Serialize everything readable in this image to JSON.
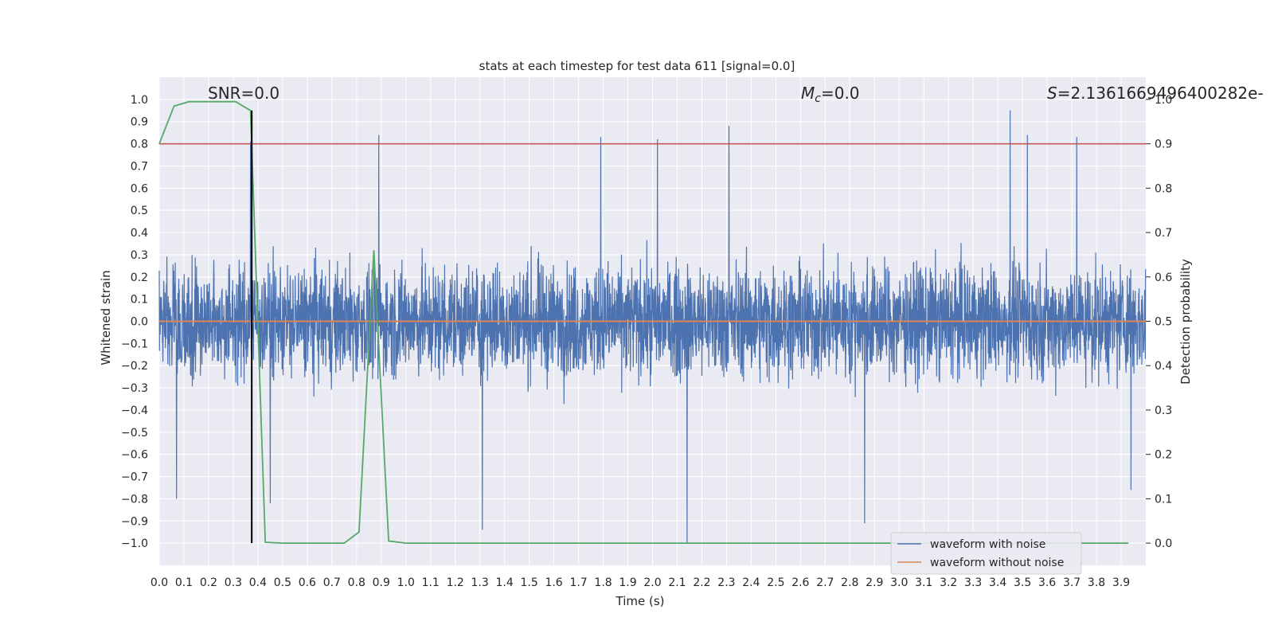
{
  "chart_data": {
    "type": "line",
    "title": "stats at each timestep for test data 611 [signal=0.0]",
    "xlabel": "Time (s)",
    "ylabel": "Whitened strain",
    "ylabel_right": "Detection probability",
    "xlim": [
      0.0,
      4.0
    ],
    "ylim": [
      -1.1,
      1.1
    ],
    "ylim_right": [
      -0.05,
      1.05
    ],
    "x_ticks": [
      "0.0",
      "0.1",
      "0.2",
      "0.3",
      "0.4",
      "0.5",
      "0.6",
      "0.7",
      "0.8",
      "0.9",
      "1.0",
      "1.1",
      "1.2",
      "1.3",
      "1.4",
      "1.5",
      "1.6",
      "1.7",
      "1.8",
      "1.9",
      "2.0",
      "2.1",
      "2.2",
      "2.3",
      "2.4",
      "2.5",
      "2.6",
      "2.7",
      "2.8",
      "2.9",
      "3.0",
      "3.1",
      "3.2",
      "3.3",
      "3.4",
      "3.5",
      "3.6",
      "3.7",
      "3.8",
      "3.9"
    ],
    "y_ticks": [
      "1.0",
      "0.9",
      "0.8",
      "0.7",
      "0.6",
      "0.5",
      "0.4",
      "0.3",
      "0.2",
      "0.1",
      "0.0",
      "−0.1",
      "−0.2",
      "−0.3",
      "−0.4",
      "−0.5",
      "−0.6",
      "−0.7",
      "−0.8",
      "−0.9",
      "−1.0"
    ],
    "y_ticks_right": [
      "1.0",
      "0.9",
      "0.8",
      "0.7",
      "0.6",
      "0.5",
      "0.4",
      "0.3",
      "0.2",
      "0.1",
      "0.0"
    ],
    "grid": true,
    "legend_position": "lower-right",
    "annotations": {
      "snr": "SNR=0.0",
      "mc_symbol": "M",
      "mc_sub": "c",
      "mc_value": "=0.0",
      "s_symbol": "S",
      "s_value": "=2.1361669496400282e-"
    },
    "series": [
      {
        "name": "waveform with noise",
        "color": "#4c72b0",
        "noise_amplitude_typical": 0.35,
        "spikes": [
          {
            "x": 0.07,
            "y": -0.8
          },
          {
            "x": 0.37,
            "y": 0.81
          },
          {
            "x": 0.45,
            "y": -0.82
          },
          {
            "x": 0.89,
            "y": 0.84
          },
          {
            "x": 1.31,
            "y": -0.94
          },
          {
            "x": 1.79,
            "y": 0.83
          },
          {
            "x": 2.02,
            "y": 0.82
          },
          {
            "x": 2.14,
            "y": -1.0
          },
          {
            "x": 2.31,
            "y": 0.88
          },
          {
            "x": 2.86,
            "y": -0.91
          },
          {
            "x": 3.45,
            "y": 0.95
          },
          {
            "x": 3.52,
            "y": 0.84
          },
          {
            "x": 3.72,
            "y": 0.83
          },
          {
            "x": 3.94,
            "y": -0.76
          }
        ]
      },
      {
        "name": "waveform without noise",
        "color": "#dd8452",
        "x": [
          0.0,
          4.0
        ],
        "y": [
          0.0,
          0.0
        ]
      },
      {
        "name": "",
        "color": "#55a868",
        "axis": "right",
        "x": [
          0.0,
          0.06,
          0.12,
          0.19,
          0.25,
          0.31,
          0.37,
          0.43,
          0.5,
          0.56,
          0.62,
          0.68,
          0.75,
          0.81,
          0.87,
          0.93,
          1.0,
          1.06,
          1.5,
          2.0,
          2.5,
          3.0,
          3.5,
          3.93
        ],
        "y": [
          0.9,
          0.985,
          0.995,
          0.995,
          0.995,
          0.995,
          0.975,
          0.002,
          0.0,
          0.0,
          0.0,
          0.0,
          0.0,
          0.025,
          0.66,
          0.005,
          0.0,
          0.0,
          0.0,
          0.0,
          0.0,
          0.0,
          0.0,
          0.0
        ]
      }
    ],
    "threshold": {
      "axis": "right",
      "value": 0.9,
      "color": "#c44e52"
    },
    "marker_time": {
      "x": 0.375,
      "color": "#000000"
    }
  }
}
